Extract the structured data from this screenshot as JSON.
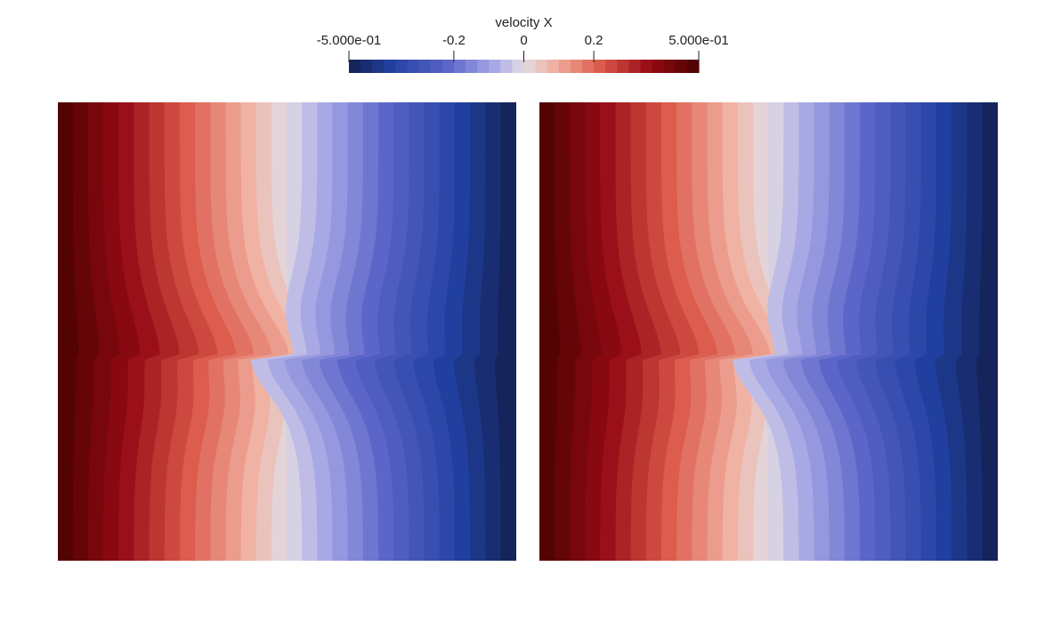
{
  "chart_data": {
    "type": "heatmap",
    "title": "velocity X",
    "colormap": "Cool to Warm (diverging, blue to red)",
    "range": [
      -0.5,
      0.5
    ],
    "levels": 30,
    "tick_labels": [
      "-5.000e-01",
      "-0.2",
      "0",
      "0.2",
      "5.000e-01"
    ],
    "tick_values": [
      -0.5,
      -0.2,
      0,
      0.2,
      0.5
    ],
    "colors": {
      "min": "#3b4cc0",
      "mid": "#dddddd",
      "max": "#b40426",
      "dark_min": "#132151",
      "dark_max": "#4a0202"
    },
    "panels": [
      {
        "field": "velocity X",
        "x_range": [
          -0.5,
          0.5
        ],
        "pattern": "left red to right blue with central S-shaped shear layer"
      },
      {
        "field": "velocity X",
        "x_range": [
          -0.5,
          0.5
        ],
        "pattern": "left red to right blue with central S-shaped shear layer"
      }
    ]
  }
}
